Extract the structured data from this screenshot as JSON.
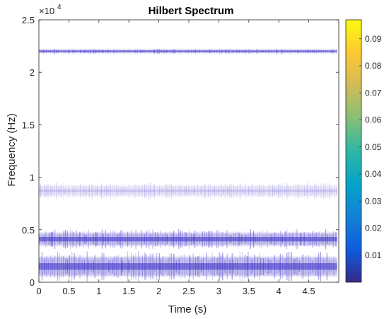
{
  "chart_data": {
    "type": "heatmap",
    "title": "Hilbert Spectrum",
    "xlabel": "Time (s)",
    "ylabel": "Frequency (Hz)",
    "xlim": [
      0,
      5
    ],
    "ylim": [
      0,
      25000
    ],
    "x_ticks": [
      0,
      0.5,
      1,
      1.5,
      2,
      2.5,
      3,
      3.5,
      4,
      4.5
    ],
    "x_tick_labels": [
      "0",
      "0.5",
      "1",
      "1.5",
      "2",
      "2.5",
      "3",
      "3.5",
      "4",
      "4.5"
    ],
    "y_ticks": [
      0,
      5000,
      10000,
      15000,
      20000,
      25000
    ],
    "y_tick_labels": [
      "0",
      "0.5",
      "1",
      "1.5",
      "2",
      "2.5"
    ],
    "y_exponent": "×10",
    "y_exponent_power": "4",
    "colorbar": {
      "colormap": "parula",
      "range": [
        0,
        0.097
      ],
      "ticks": [
        0.01,
        0.02,
        0.03,
        0.04,
        0.05,
        0.06,
        0.07,
        0.08,
        0.09
      ],
      "tick_labels": [
        "0.01",
        "0.02",
        "0.03",
        "0.04",
        "0.05",
        "0.06",
        "0.07",
        "0.08",
        "0.09"
      ]
    },
    "bands": [
      {
        "freq_center": 22000,
        "freq_halfwidth": 150,
        "intensity": "strong"
      },
      {
        "freq_center": 8700,
        "freq_halfwidth": 500,
        "intensity": "faint"
      },
      {
        "freq_center": 4100,
        "freq_halfwidth": 600,
        "intensity": "strong"
      },
      {
        "freq_center": 1500,
        "freq_halfwidth": 900,
        "intensity": "strong"
      }
    ],
    "time_range": [
      0,
      4.97
    ],
    "grid": false
  },
  "colors": {
    "axis": "#262626",
    "band": "#3d2fc8",
    "parula_stops": [
      "#352a87",
      "#0f5cdd",
      "#1481d6",
      "#06a4ca",
      "#2eb7a4",
      "#87bf77",
      "#d1bb59",
      "#fec832",
      "#f9fb0e"
    ]
  }
}
